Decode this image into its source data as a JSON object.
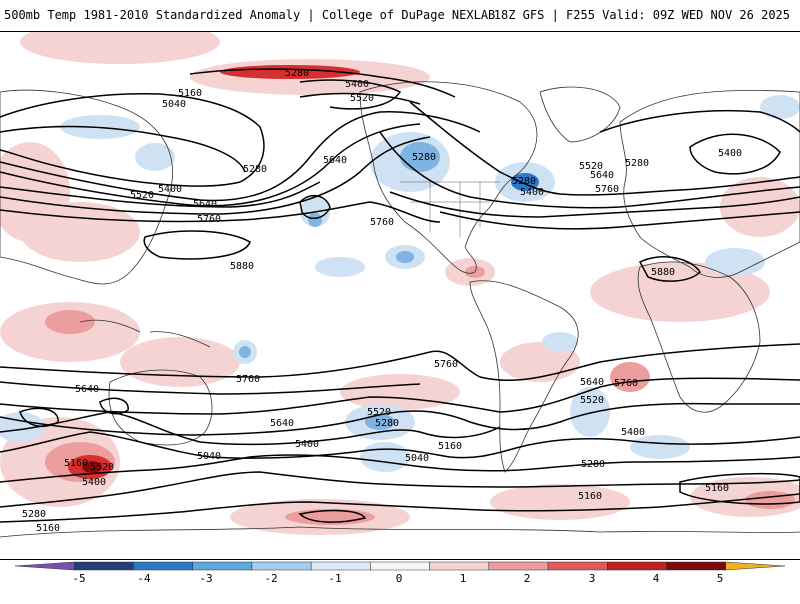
{
  "header": {
    "title": "500mb Temp 1981-2010 Standardized Anomaly | College of DuPage NEXLAB",
    "run_info": "18Z GFS | F255 Valid: 09Z WED NOV 26 2025"
  },
  "contour_labels": [
    "5280",
    "5400",
    "5520",
    "5160",
    "5040",
    "5280",
    "5400",
    "5520",
    "5640",
    "5760",
    "5880",
    "5280",
    "5640",
    "5760",
    "5280",
    "5400",
    "5520",
    "5640",
    "5760",
    "5280",
    "5400",
    "5880",
    "5760",
    "5640",
    "5760",
    "5640",
    "5760",
    "5520",
    "5280",
    "5640",
    "5400",
    "5520",
    "5400",
    "5160",
    "5040",
    "5040",
    "5160",
    "5520",
    "5400",
    "5280",
    "5160",
    "5280",
    "5160",
    "5160"
  ],
  "colorbar": {
    "labels": [
      "-5",
      "-4",
      "-3",
      "-2",
      "-1",
      "0",
      "1",
      "2",
      "3",
      "4",
      "5"
    ],
    "colors": [
      "#7b4fb0",
      "#223d78",
      "#2a78c4",
      "#5ca8dc",
      "#a4cdee",
      "#ddeaf7",
      "#f7f7f7",
      "#f6d3d3",
      "#ec9d9d",
      "#e05a5a",
      "#c02020",
      "#7a0a0a",
      "#f0b020"
    ]
  },
  "colors": {
    "warm_light": "#f6d3d3",
    "warm_mid": "#ec9d9d",
    "warm_strong": "#d43030",
    "warm_extreme": "#8a0a0a",
    "cold_light": "#cfe2f4",
    "cold_mid": "#7fb3e2",
    "cold_strong": "#2e78c8"
  }
}
